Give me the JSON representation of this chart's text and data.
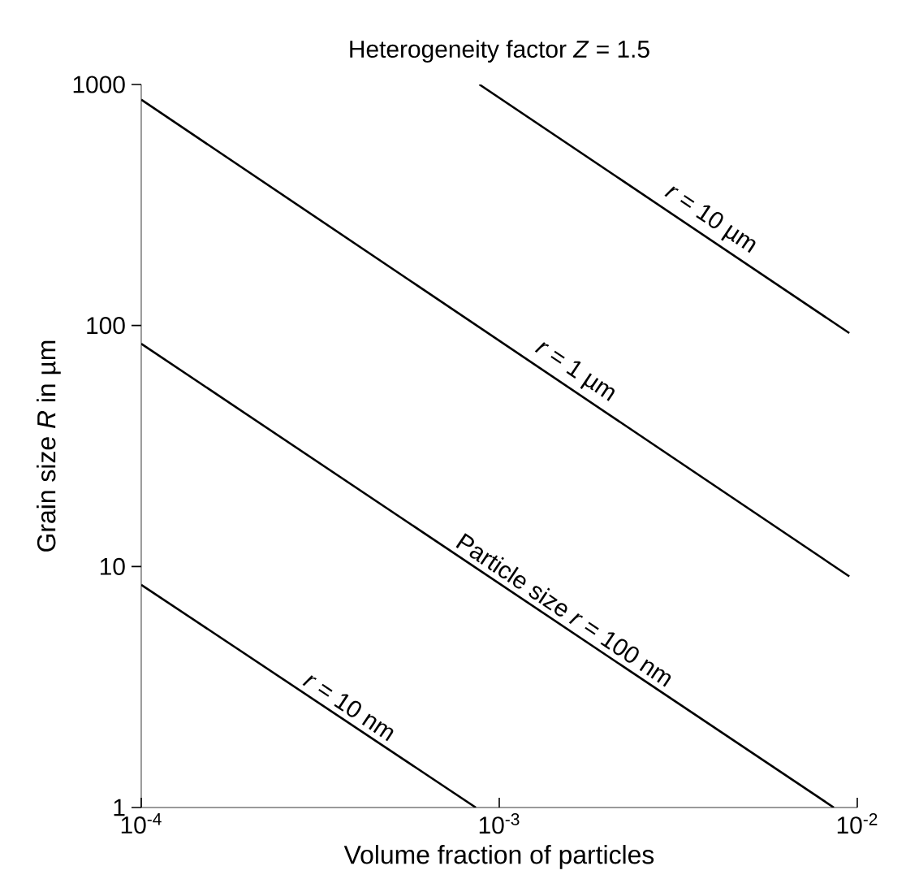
{
  "chart_data": {
    "type": "line",
    "title": "Heterogeneity factor *Z* = 1.5",
    "xlabel": "Volume fraction of particles",
    "ylabel": "Grain size *R* in µm",
    "log": "xy",
    "xlim": [
      0.0001,
      0.01
    ],
    "ylim": [
      1,
      1000
    ],
    "xticks": [
      {
        "value": 0.0001,
        "label": "10$^{-4}$"
      },
      {
        "value": 0.001,
        "label": "10$^{-3}$"
      },
      {
        "value": 0.01,
        "label": "10$^{-2}$"
      }
    ],
    "yticks": [
      1,
      10,
      100,
      1000
    ],
    "grid": false,
    "marker": "none",
    "line_style": "solid",
    "series": [
      {
        "name": "*r* = 10 µm",
        "color": "#000000",
        "x": [
          0.00088,
          0.0095
        ],
        "values": [
          1000,
          93
        ]
      },
      {
        "name": "*r* = 1 µm",
        "color": "#000000",
        "x": [
          0.0001,
          0.0095
        ],
        "values": [
          865,
          9.1
        ]
      },
      {
        "name": "Particle size *r* = 100 nm",
        "color": "#000000",
        "x": [
          0.0001,
          0.0086
        ],
        "values": [
          84,
          1
        ]
      },
      {
        "name": "*r* = 10 nm",
        "color": "#000000",
        "x": [
          0.0001,
          0.00086
        ],
        "values": [
          8.4,
          1
        ]
      }
    ]
  }
}
